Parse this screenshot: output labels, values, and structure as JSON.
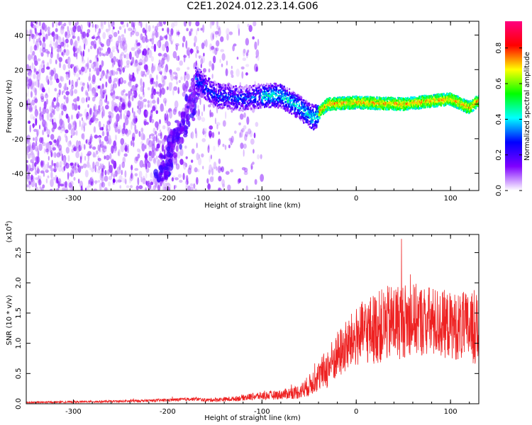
{
  "title": "C2E1.2024.012.23.14.G06",
  "colors": {
    "line": "#ee2222"
  },
  "chart_data": [
    {
      "type": "heatmap",
      "xlabel": "Height of straight line (km)",
      "ylabel": "Frequency (Hz)",
      "xlim": [
        -350,
        130
      ],
      "ylim": [
        -50,
        48
      ],
      "xticks": [
        -300,
        -200,
        -100,
        0,
        100
      ],
      "yticks": [
        -40,
        -20,
        0,
        20,
        40
      ],
      "colorbar": {
        "label": "Normalized spectral amplitude",
        "range": [
          0,
          0.95
        ],
        "ticks": [
          "0.0",
          "0.2",
          "0.4",
          "0.6",
          "0.8"
        ],
        "colormap": [
          "#ffffff",
          "#7f00ff",
          "#0000ff",
          "#00ffff",
          "#00ff00",
          "#ffff00",
          "#ff0000",
          "#ff0080"
        ]
      },
      "ridge": {
        "description": "peak frequency band",
        "points": [
          [
            -170,
            15
          ],
          [
            -150,
            5
          ],
          [
            -120,
            3
          ],
          [
            -100,
            5
          ],
          [
            -80,
            5
          ],
          [
            -60,
            -2
          ],
          [
            -45,
            -8
          ],
          [
            -30,
            0
          ],
          [
            0,
            1
          ],
          [
            50,
            0
          ],
          [
            100,
            3
          ],
          [
            120,
            -2
          ],
          [
            130,
            2
          ]
        ]
      }
    },
    {
      "type": "line",
      "xlabel": "Height of straight line (km)",
      "ylabel": "SNR (10 * v/v)",
      "yscale_label": "(x10",
      "yscale_exp": "4",
      "xlim": [
        -350,
        130
      ],
      "ylim": [
        0,
        2.8
      ],
      "xticks": [
        -300,
        -200,
        -100,
        0,
        100
      ],
      "yticks": [
        "0.0",
        "0.5",
        "1.0",
        "1.5",
        "2.0",
        "2.5"
      ],
      "envelope": {
        "x": [
          -350,
          -300,
          -250,
          -200,
          -170,
          -160,
          -130,
          -110,
          -80,
          -60,
          -50,
          -40,
          -30,
          -20,
          -10,
          0,
          10,
          20,
          40,
          60,
          80,
          100,
          120,
          130
        ],
        "mean": [
          0.02,
          0.03,
          0.04,
          0.06,
          0.08,
          0.06,
          0.08,
          0.12,
          0.15,
          0.2,
          0.3,
          0.45,
          0.6,
          0.8,
          0.95,
          1.1,
          1.2,
          1.25,
          1.35,
          1.4,
          1.35,
          1.3,
          1.25,
          1.2
        ],
        "amp": [
          0.015,
          0.015,
          0.02,
          0.025,
          0.03,
          0.03,
          0.04,
          0.06,
          0.08,
          0.12,
          0.18,
          0.25,
          0.35,
          0.4,
          0.45,
          0.5,
          0.55,
          0.6,
          0.65,
          0.6,
          0.6,
          0.55,
          0.6,
          0.6
        ]
      }
    }
  ]
}
